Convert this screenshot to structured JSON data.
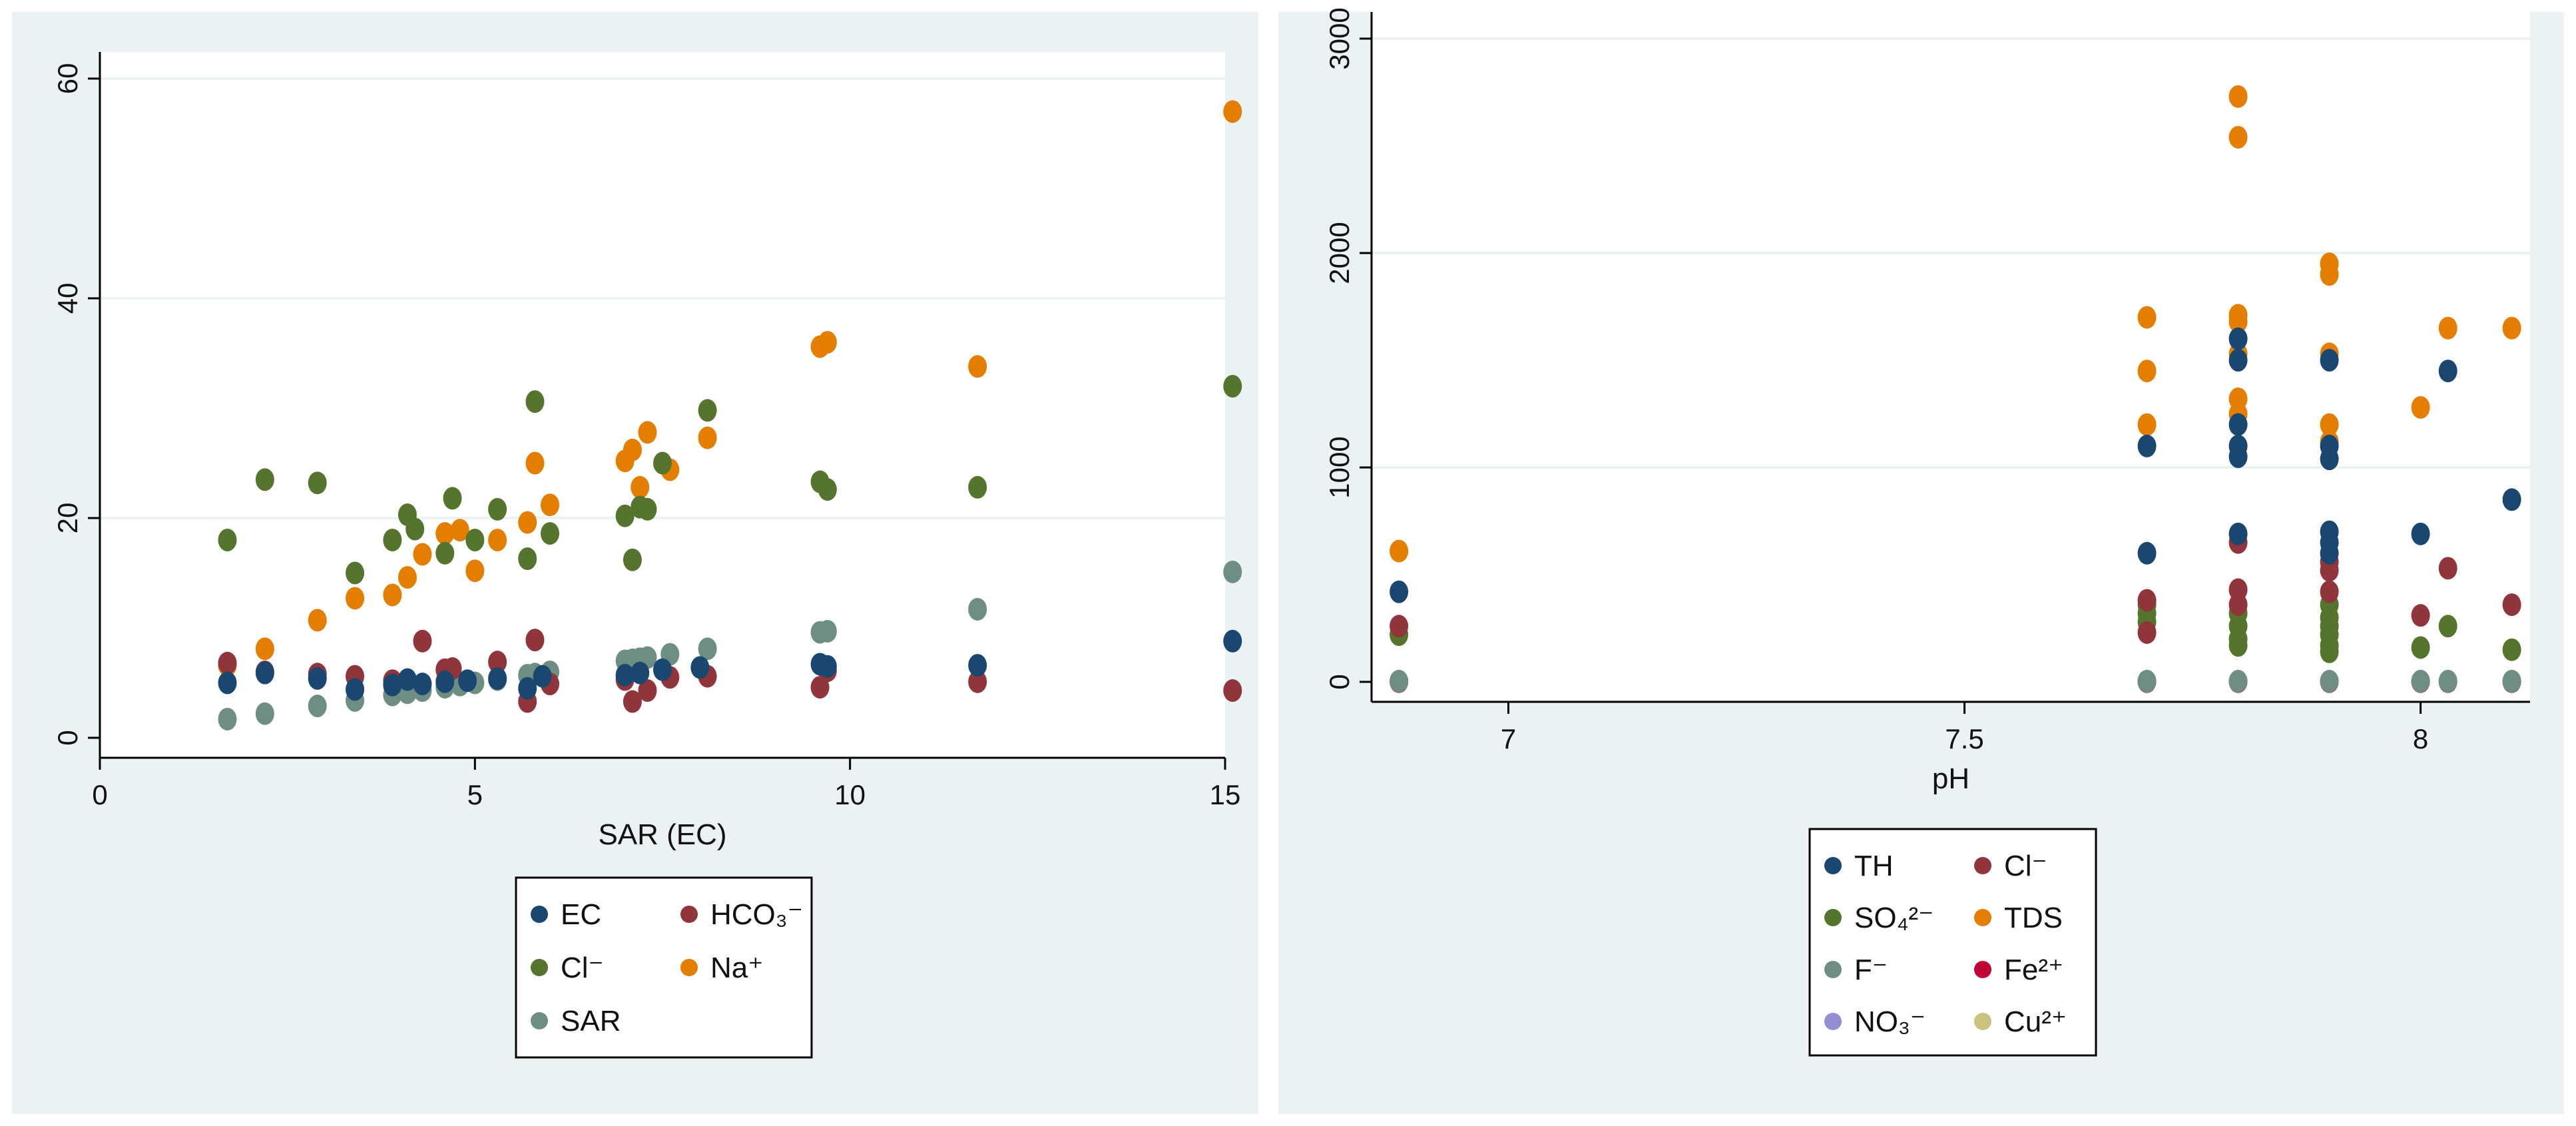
{
  "chart_data": [
    {
      "type": "scatter",
      "title": "",
      "xlabel": "SAR (EC)",
      "ylabel": "",
      "xlim": [
        0,
        15
      ],
      "ylim": [
        0,
        60
      ],
      "x_ticks": [
        "0",
        "5",
        "10",
        "15"
      ],
      "y_ticks": [
        "0",
        "20",
        "40",
        "60"
      ],
      "grid": true,
      "legend_position": "bottom",
      "series": [
        {
          "name": "EC",
          "color": "#1a476f",
          "points": [
            [
              1.7,
              5.0
            ],
            [
              2.2,
              5.9
            ],
            [
              2.9,
              5.4
            ],
            [
              3.4,
              4.4
            ],
            [
              3.9,
              4.8
            ],
            [
              4.1,
              5.3
            ],
            [
              4.3,
              4.9
            ],
            [
              4.6,
              5.1
            ],
            [
              4.9,
              5.2
            ],
            [
              5.3,
              5.4
            ],
            [
              5.7,
              4.5
            ],
            [
              5.9,
              5.6
            ],
            [
              7.0,
              5.7
            ],
            [
              7.2,
              5.9
            ],
            [
              7.5,
              6.2
            ],
            [
              8.0,
              6.4
            ],
            [
              9.6,
              6.7
            ],
            [
              9.7,
              6.5
            ],
            [
              11.7,
              6.6
            ],
            [
              15.1,
              8.8
            ]
          ]
        },
        {
          "name": "HCO₃⁻",
          "color": "#90353b",
          "points": [
            [
              1.7,
              6.8
            ],
            [
              2.2,
              6.0
            ],
            [
              2.9,
              5.8
            ],
            [
              3.4,
              5.6
            ],
            [
              3.9,
              5.2
            ],
            [
              4.3,
              8.8
            ],
            [
              4.6,
              6.2
            ],
            [
              4.7,
              6.3
            ],
            [
              5.3,
              6.9
            ],
            [
              5.7,
              3.3
            ],
            [
              5.8,
              8.9
            ],
            [
              6.0,
              4.9
            ],
            [
              7.0,
              5.3
            ],
            [
              7.1,
              3.3
            ],
            [
              7.3,
              4.3
            ],
            [
              7.6,
              5.5
            ],
            [
              8.1,
              5.6
            ],
            [
              9.6,
              4.6
            ],
            [
              9.7,
              6.1
            ],
            [
              11.7,
              5.1
            ],
            [
              15.1,
              4.3
            ]
          ]
        },
        {
          "name": "Cl⁻",
          "color": "#55752f",
          "points": [
            [
              1.7,
              18.0
            ],
            [
              2.2,
              23.5
            ],
            [
              2.9,
              23.2
            ],
            [
              3.4,
              15.0
            ],
            [
              3.9,
              18.0
            ],
            [
              4.1,
              20.3
            ],
            [
              4.2,
              19.0
            ],
            [
              4.6,
              16.8
            ],
            [
              4.7,
              21.8
            ],
            [
              5.0,
              18.0
            ],
            [
              5.3,
              20.8
            ],
            [
              5.7,
              16.3
            ],
            [
              5.8,
              30.6
            ],
            [
              6.0,
              18.6
            ],
            [
              7.0,
              20.2
            ],
            [
              7.1,
              16.2
            ],
            [
              7.2,
              21.0
            ],
            [
              7.3,
              20.8
            ],
            [
              7.5,
              25.0
            ],
            [
              8.1,
              29.8
            ],
            [
              9.6,
              23.3
            ],
            [
              9.7,
              22.6
            ],
            [
              11.7,
              22.8
            ],
            [
              15.1,
              32.0
            ]
          ]
        },
        {
          "name": "Na⁺",
          "color": "#e37e00",
          "points": [
            [
              1.7,
              6.6
            ],
            [
              2.2,
              8.1
            ],
            [
              2.9,
              10.7
            ],
            [
              3.4,
              12.7
            ],
            [
              3.9,
              13.0
            ],
            [
              4.1,
              14.6
            ],
            [
              4.3,
              16.7
            ],
            [
              4.6,
              18.6
            ],
            [
              4.8,
              18.9
            ],
            [
              5.0,
              15.2
            ],
            [
              5.3,
              18.0
            ],
            [
              5.7,
              19.6
            ],
            [
              5.8,
              25.0
            ],
            [
              6.0,
              21.2
            ],
            [
              7.0,
              25.2
            ],
            [
              7.1,
              26.2
            ],
            [
              7.2,
              22.8
            ],
            [
              7.3,
              27.8
            ],
            [
              7.6,
              24.4
            ],
            [
              8.1,
              27.3
            ],
            [
              9.6,
              35.6
            ],
            [
              9.7,
              36.0
            ],
            [
              11.7,
              33.8
            ],
            [
              15.1,
              57.0
            ]
          ]
        },
        {
          "name": "SAR",
          "color": "#6e8e84",
          "points": [
            [
              1.7,
              1.7
            ],
            [
              2.2,
              2.2
            ],
            [
              2.9,
              2.9
            ],
            [
              3.4,
              3.4
            ],
            [
              3.9,
              3.9
            ],
            [
              4.1,
              4.1
            ],
            [
              4.3,
              4.3
            ],
            [
              4.6,
              4.6
            ],
            [
              4.8,
              4.8
            ],
            [
              5.0,
              5.0
            ],
            [
              5.3,
              5.3
            ],
            [
              5.7,
              5.7
            ],
            [
              5.8,
              5.8
            ],
            [
              6.0,
              6.0
            ],
            [
              7.0,
              7.0
            ],
            [
              7.1,
              7.1
            ],
            [
              7.2,
              7.2
            ],
            [
              7.3,
              7.3
            ],
            [
              7.6,
              7.6
            ],
            [
              8.1,
              8.1
            ],
            [
              9.6,
              9.6
            ],
            [
              9.7,
              9.7
            ],
            [
              11.7,
              11.7
            ],
            [
              15.1,
              15.1
            ]
          ]
        }
      ]
    },
    {
      "type": "scatter",
      "title": "",
      "xlabel": "pH",
      "ylabel": "",
      "xlim": [
        6.85,
        8.12
      ],
      "ylim": [
        0,
        3000
      ],
      "x_ticks": [
        "7",
        "7.5",
        "8"
      ],
      "x_tick_values": [
        7,
        7.5,
        8
      ],
      "y_ticks": [
        "0",
        "1000",
        "2000",
        "3000"
      ],
      "grid": true,
      "legend_position": "bottom",
      "series": [
        {
          "name": "TH",
          "color": "#1a476f",
          "points": [
            [
              6.88,
              420
            ],
            [
              7.7,
              600
            ],
            [
              7.7,
              1100
            ],
            [
              7.8,
              1050
            ],
            [
              7.8,
              1100
            ],
            [
              7.8,
              1200
            ],
            [
              7.8,
              1500
            ],
            [
              7.8,
              1600
            ],
            [
              7.8,
              690
            ],
            [
              7.9,
              1040
            ],
            [
              7.9,
              1100
            ],
            [
              7.9,
              1500
            ],
            [
              7.9,
              700
            ],
            [
              7.9,
              650
            ],
            [
              7.9,
              600
            ],
            [
              8.0,
              690
            ],
            [
              8.03,
              1450
            ],
            [
              8.1,
              850
            ]
          ]
        },
        {
          "name": "Cl⁻",
          "color": "#90353b",
          "points": [
            [
              6.88,
              260
            ],
            [
              7.7,
              380
            ],
            [
              7.7,
              230
            ],
            [
              7.8,
              650
            ],
            [
              7.8,
              430
            ],
            [
              7.8,
              360
            ],
            [
              7.9,
              560
            ],
            [
              7.9,
              520
            ],
            [
              7.9,
              420
            ],
            [
              8.0,
              310
            ],
            [
              8.03,
              530
            ],
            [
              8.1,
              360
            ]
          ]
        },
        {
          "name": "SO₄²⁻",
          "color": "#55752f",
          "points": [
            [
              6.88,
              220
            ],
            [
              7.7,
              360
            ],
            [
              7.7,
              320
            ],
            [
              7.7,
              280
            ],
            [
              7.8,
              320
            ],
            [
              7.8,
              260
            ],
            [
              7.8,
              200
            ],
            [
              7.8,
              170
            ],
            [
              7.9,
              360
            ],
            [
              7.9,
              300
            ],
            [
              7.9,
              260
            ],
            [
              7.9,
              220
            ],
            [
              7.9,
              170
            ],
            [
              7.9,
              140
            ],
            [
              8.0,
              160
            ],
            [
              8.03,
              260
            ],
            [
              8.1,
              150
            ]
          ]
        },
        {
          "name": "TDS",
          "color": "#e37e00",
          "points": [
            [
              6.88,
              610
            ],
            [
              7.7,
              1700
            ],
            [
              7.7,
              1450
            ],
            [
              7.7,
              1200
            ],
            [
              7.8,
              2730
            ],
            [
              7.8,
              2540
            ],
            [
              7.8,
              1710
            ],
            [
              7.8,
              1680
            ],
            [
              7.8,
              1530
            ],
            [
              7.8,
              1320
            ],
            [
              7.8,
              1250
            ],
            [
              7.9,
              1950
            ],
            [
              7.9,
              1900
            ],
            [
              7.9,
              1530
            ],
            [
              7.9,
              1200
            ],
            [
              7.9,
              1120
            ],
            [
              8.0,
              1280
            ],
            [
              8.03,
              1650
            ],
            [
              8.1,
              1650
            ]
          ]
        },
        {
          "name": "F⁻",
          "color": "#6e8e84",
          "points": [
            [
              6.88,
              3
            ],
            [
              7.7,
              3
            ],
            [
              7.8,
              3
            ],
            [
              7.9,
              3
            ],
            [
              8.0,
              3
            ],
            [
              8.03,
              3
            ],
            [
              8.1,
              3
            ]
          ]
        },
        {
          "name": "Fe²⁺",
          "color": "#c10534",
          "points": [
            [
              6.88,
              1
            ],
            [
              7.7,
              1
            ],
            [
              7.8,
              1
            ],
            [
              7.9,
              1
            ],
            [
              8.0,
              1
            ],
            [
              8.03,
              1
            ],
            [
              8.1,
              1
            ]
          ]
        },
        {
          "name": "NO₃⁻",
          "color": "#938dd2",
          "points": [
            [
              6.88,
              2
            ],
            [
              7.7,
              2
            ],
            [
              7.8,
              2
            ],
            [
              7.9,
              2
            ],
            [
              8.0,
              2
            ],
            [
              8.03,
              2
            ],
            [
              8.1,
              2
            ]
          ]
        },
        {
          "name": "Cu²⁺",
          "color": "#cac27e",
          "points": [
            [
              6.88,
              4
            ],
            [
              7.7,
              4
            ],
            [
              7.8,
              4
            ],
            [
              7.9,
              4
            ],
            [
              8.0,
              4
            ],
            [
              8.03,
              4
            ],
            [
              8.1,
              4
            ]
          ]
        }
      ]
    }
  ]
}
